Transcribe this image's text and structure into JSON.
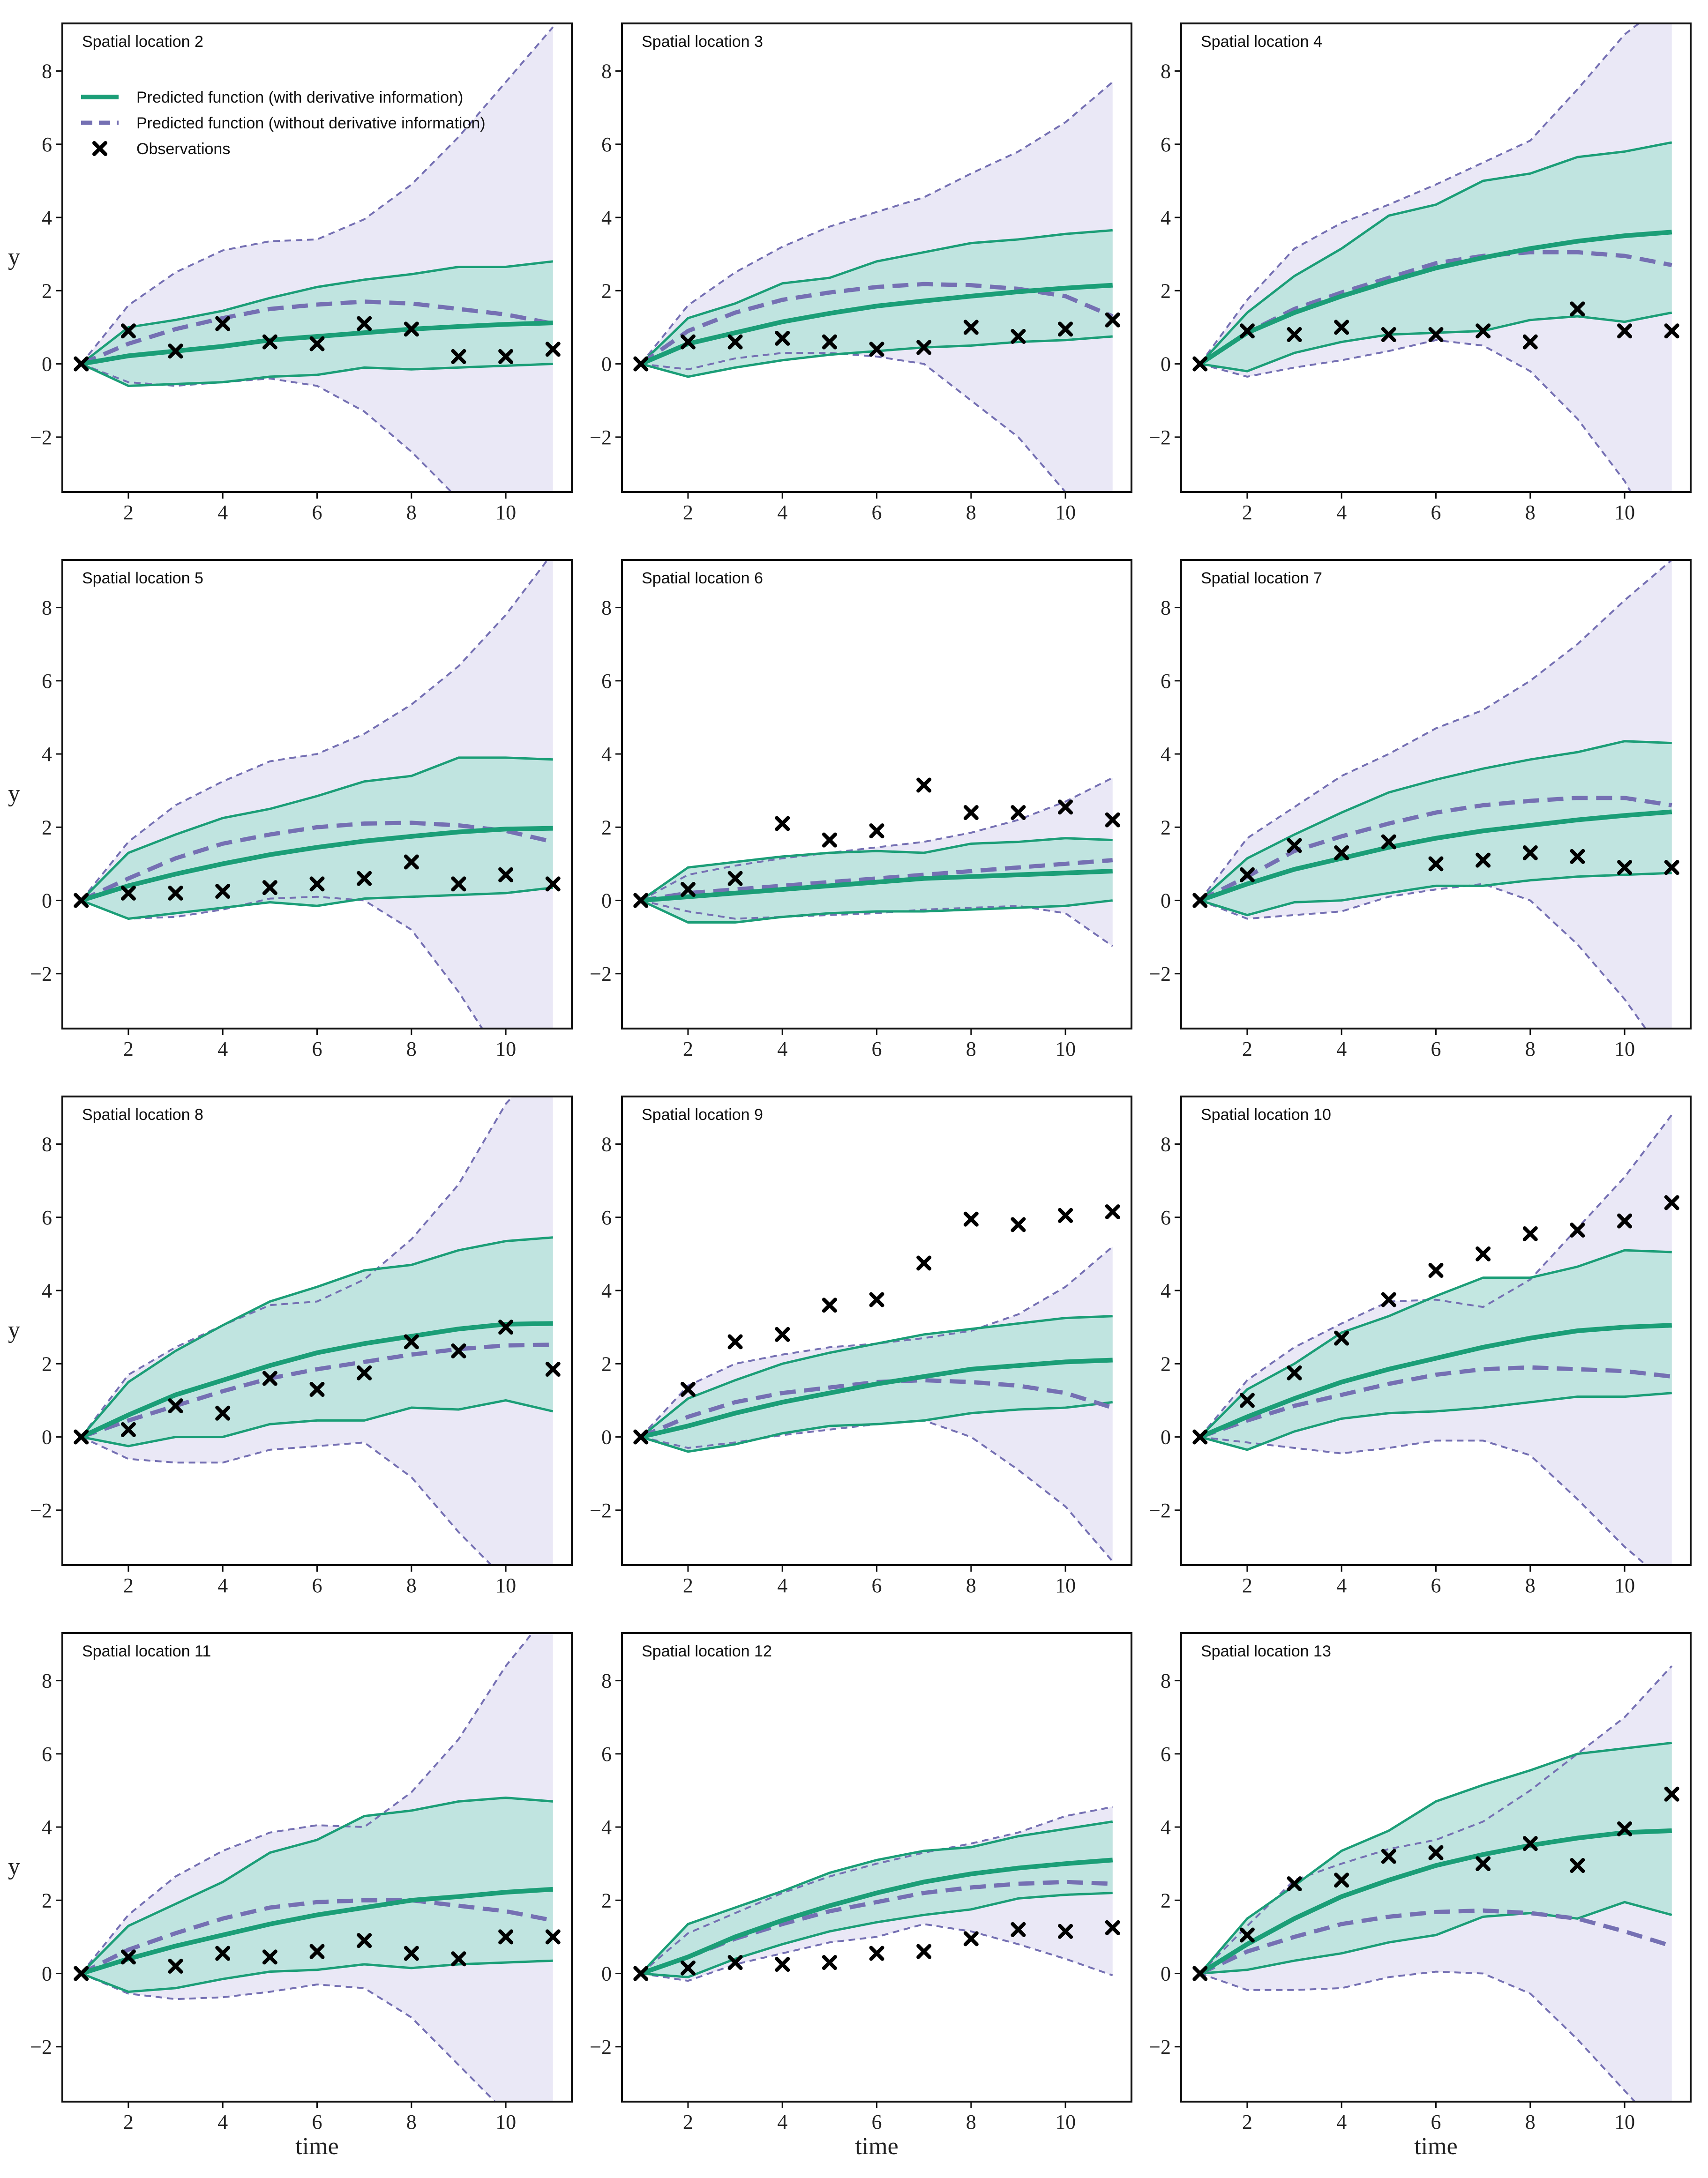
{
  "chart_data": {
    "type": "line",
    "xlim": [
      0.6,
      11.4
    ],
    "ylim": [
      -3.5,
      9.3
    ],
    "x_ticks": [
      2,
      4,
      6,
      8,
      10
    ],
    "y_ticks": [
      -2,
      0,
      2,
      4,
      6,
      8
    ],
    "x_values": [
      1,
      2,
      3,
      4,
      5,
      6,
      7,
      8,
      9,
      10,
      11
    ],
    "xlabel": "time",
    "ylabel": "y",
    "grid": false,
    "legend": {
      "placement": "top-left of first panel",
      "entries": [
        {
          "label": "Predicted function (with derivative information)",
          "style": "solid",
          "color": "#1b9e77"
        },
        {
          "label": "Predicted function (without derivative information)",
          "style": "dashed",
          "color": "#7570b3"
        },
        {
          "label": "Observations",
          "style": "marker-x",
          "color": "#000000"
        }
      ]
    },
    "colors": {
      "with_derivative": "#1b9e77",
      "without_derivative": "#7570b3",
      "with_band": "#b9e3dc",
      "without_band": "#e6e4f4",
      "observations": "#000000"
    },
    "panels": [
      {
        "title": "Spatial location 2",
        "obs": [
          0,
          0.9,
          0.35,
          1.1,
          0.6,
          0.55,
          1.1,
          0.95,
          0.2,
          0.2,
          0.4
        ],
        "with_mean": [
          0,
          0.22,
          0.35,
          0.48,
          0.65,
          0.75,
          0.85,
          0.95,
          1.02,
          1.08,
          1.12
        ],
        "with_lower": [
          0,
          -0.6,
          -0.55,
          -0.5,
          -0.35,
          -0.3,
          -0.1,
          -0.15,
          -0.1,
          -0.05,
          0
        ],
        "with_upper": [
          0,
          1.0,
          1.2,
          1.45,
          1.8,
          2.1,
          2.3,
          2.45,
          2.65,
          2.65,
          2.8
        ],
        "without_mean": [
          0,
          0.55,
          0.95,
          1.25,
          1.5,
          1.62,
          1.7,
          1.65,
          1.5,
          1.35,
          1.1
        ],
        "without_lower": [
          0,
          -0.5,
          -0.6,
          -0.5,
          -0.4,
          -0.6,
          -1.3,
          -2.4,
          -3.7,
          -5.3,
          -7.2
        ],
        "without_upper": [
          0,
          1.6,
          2.5,
          3.1,
          3.35,
          3.4,
          3.95,
          4.9,
          6.2,
          7.7,
          9.2
        ]
      },
      {
        "title": "Spatial location 3",
        "obs": [
          0,
          0.6,
          0.6,
          0.7,
          0.6,
          0.4,
          0.45,
          1.0,
          0.75,
          0.95,
          1.2
        ],
        "with_mean": [
          0,
          0.55,
          0.85,
          1.15,
          1.38,
          1.58,
          1.72,
          1.85,
          1.97,
          2.07,
          2.15
        ],
        "with_lower": [
          0,
          -0.35,
          -0.1,
          0.1,
          0.25,
          0.35,
          0.45,
          0.5,
          0.6,
          0.65,
          0.75
        ],
        "with_upper": [
          0,
          1.25,
          1.65,
          2.2,
          2.35,
          2.8,
          3.05,
          3.3,
          3.4,
          3.55,
          3.65
        ],
        "without_mean": [
          0,
          0.9,
          1.4,
          1.75,
          1.95,
          2.1,
          2.18,
          2.15,
          2.05,
          1.85,
          1.3
        ],
        "without_lower": [
          0,
          -0.15,
          0.15,
          0.3,
          0.3,
          0.2,
          0.0,
          -1.0,
          -2.0,
          -3.5,
          -5.0
        ],
        "without_upper": [
          0,
          1.6,
          2.5,
          3.2,
          3.75,
          4.15,
          4.55,
          5.2,
          5.8,
          6.6,
          7.7
        ]
      },
      {
        "title": "Spatial location 4",
        "obs": [
          0,
          0.9,
          0.8,
          1.0,
          0.8,
          0.8,
          0.9,
          0.6,
          1.5,
          0.9,
          0.9
        ],
        "with_mean": [
          0,
          0.85,
          1.4,
          1.85,
          2.25,
          2.62,
          2.9,
          3.15,
          3.35,
          3.5,
          3.6
        ],
        "with_lower": [
          0,
          -0.2,
          0.3,
          0.6,
          0.8,
          0.85,
          0.9,
          1.2,
          1.3,
          1.15,
          1.4
        ],
        "with_upper": [
          0,
          1.4,
          2.4,
          3.15,
          4.05,
          4.35,
          5.0,
          5.2,
          5.65,
          5.8,
          6.05
        ],
        "without_mean": [
          0,
          0.85,
          1.5,
          1.95,
          2.35,
          2.75,
          2.95,
          3.05,
          3.05,
          2.95,
          2.7
        ],
        "without_lower": [
          0,
          -0.35,
          -0.1,
          0.1,
          0.35,
          0.65,
          0.5,
          -0.2,
          -1.5,
          -3.2,
          -5.5
        ],
        "without_upper": [
          0,
          1.75,
          3.15,
          3.85,
          4.35,
          4.9,
          5.5,
          6.1,
          7.5,
          9.0,
          10.0
        ]
      },
      {
        "title": "Spatial location 5",
        "obs": [
          0,
          0.2,
          0.2,
          0.25,
          0.35,
          0.45,
          0.6,
          1.05,
          0.45,
          0.7,
          0.45
        ],
        "with_mean": [
          0,
          0.4,
          0.72,
          1.0,
          1.25,
          1.45,
          1.62,
          1.75,
          1.87,
          1.95,
          1.97
        ],
        "with_lower": [
          0,
          -0.5,
          -0.35,
          -0.2,
          -0.05,
          -0.15,
          0.05,
          0.1,
          0.15,
          0.2,
          0.35
        ],
        "with_upper": [
          0,
          1.3,
          1.8,
          2.25,
          2.5,
          2.85,
          3.25,
          3.4,
          3.9,
          3.9,
          3.85
        ],
        "without_mean": [
          0,
          0.6,
          1.15,
          1.55,
          1.8,
          2.0,
          2.1,
          2.12,
          2.05,
          1.9,
          1.6
        ],
        "without_lower": [
          0,
          -0.5,
          -0.45,
          -0.25,
          0.05,
          0.1,
          0.0,
          -0.8,
          -2.5,
          -4.5,
          -6.5
        ],
        "without_upper": [
          0,
          1.6,
          2.6,
          3.25,
          3.8,
          4.0,
          4.55,
          5.35,
          6.4,
          7.8,
          9.5
        ]
      },
      {
        "title": "Spatial location 6",
        "obs": [
          0,
          0.3,
          0.6,
          2.1,
          1.65,
          1.9,
          3.15,
          2.4,
          2.4,
          2.55,
          2.2
        ],
        "with_mean": [
          0,
          0.1,
          0.2,
          0.3,
          0.4,
          0.5,
          0.6,
          0.65,
          0.7,
          0.75,
          0.8
        ],
        "with_lower": [
          0,
          -0.6,
          -0.6,
          -0.45,
          -0.35,
          -0.3,
          -0.3,
          -0.25,
          -0.2,
          -0.15,
          0
        ],
        "with_upper": [
          0,
          0.9,
          1.05,
          1.2,
          1.3,
          1.35,
          1.3,
          1.55,
          1.6,
          1.7,
          1.65
        ],
        "without_mean": [
          0,
          0.2,
          0.3,
          0.4,
          0.5,
          0.6,
          0.7,
          0.8,
          0.9,
          1.0,
          1.1
        ],
        "without_lower": [
          0,
          -0.3,
          -0.5,
          -0.45,
          -0.4,
          -0.35,
          -0.25,
          -0.2,
          -0.15,
          -0.35,
          -1.25
        ],
        "without_upper": [
          0,
          0.7,
          0.95,
          1.15,
          1.3,
          1.45,
          1.6,
          1.85,
          2.2,
          2.7,
          3.35
        ]
      },
      {
        "title": "Spatial location 7",
        "obs": [
          0,
          0.7,
          1.5,
          1.3,
          1.6,
          1.0,
          1.1,
          1.3,
          1.2,
          0.9,
          0.9
        ],
        "with_mean": [
          0,
          0.45,
          0.85,
          1.15,
          1.45,
          1.7,
          1.9,
          2.05,
          2.2,
          2.32,
          2.42
        ],
        "with_lower": [
          0,
          -0.4,
          -0.05,
          0.0,
          0.2,
          0.4,
          0.4,
          0.55,
          0.65,
          0.7,
          0.75
        ],
        "with_upper": [
          0,
          1.15,
          1.8,
          2.4,
          2.95,
          3.3,
          3.6,
          3.85,
          4.05,
          4.35,
          4.3
        ],
        "without_mean": [
          0,
          0.65,
          1.35,
          1.75,
          2.1,
          2.4,
          2.6,
          2.72,
          2.8,
          2.8,
          2.6
        ],
        "without_lower": [
          0,
          -0.5,
          -0.4,
          -0.3,
          0.1,
          0.3,
          0.45,
          0.0,
          -1.2,
          -2.7,
          -4.5
        ],
        "without_upper": [
          0,
          1.7,
          2.55,
          3.4,
          4.0,
          4.7,
          5.2,
          6.0,
          7.0,
          8.2,
          9.3
        ]
      },
      {
        "title": "Spatial location 8",
        "obs": [
          0,
          0.2,
          0.85,
          0.65,
          1.6,
          1.3,
          1.75,
          2.6,
          2.35,
          3.0,
          1.85
        ],
        "with_mean": [
          0,
          0.6,
          1.15,
          1.55,
          1.95,
          2.3,
          2.55,
          2.75,
          2.95,
          3.08,
          3.1
        ],
        "with_lower": [
          0,
          -0.25,
          0.0,
          0.0,
          0.35,
          0.45,
          0.45,
          0.8,
          0.75,
          1.0,
          0.7
        ],
        "with_upper": [
          0,
          1.5,
          2.35,
          3.05,
          3.7,
          4.1,
          4.55,
          4.7,
          5.1,
          5.35,
          5.45
        ],
        "without_mean": [
          0,
          0.45,
          0.85,
          1.25,
          1.6,
          1.85,
          2.05,
          2.25,
          2.4,
          2.5,
          2.52
        ],
        "without_lower": [
          0,
          -0.6,
          -0.7,
          -0.7,
          -0.35,
          -0.25,
          -0.15,
          -1.1,
          -2.6,
          -3.9,
          -5.5
        ],
        "without_upper": [
          0,
          1.7,
          2.45,
          3.05,
          3.6,
          3.7,
          4.3,
          5.4,
          6.9,
          9.1,
          10.5
        ]
      },
      {
        "title": "Spatial location 9",
        "obs": [
          0,
          1.3,
          2.6,
          2.8,
          3.6,
          3.75,
          4.75,
          5.95,
          5.8,
          6.05,
          6.15
        ],
        "with_mean": [
          0,
          0.3,
          0.65,
          0.95,
          1.2,
          1.45,
          1.65,
          1.85,
          1.95,
          2.05,
          2.1
        ],
        "with_lower": [
          0,
          -0.4,
          -0.2,
          0.1,
          0.3,
          0.35,
          0.45,
          0.65,
          0.75,
          0.8,
          0.95
        ],
        "with_upper": [
          0,
          1.05,
          1.55,
          2.0,
          2.3,
          2.55,
          2.8,
          2.95,
          3.1,
          3.25,
          3.3
        ],
        "without_mean": [
          0,
          0.55,
          0.95,
          1.2,
          1.35,
          1.5,
          1.55,
          1.5,
          1.4,
          1.2,
          0.8
        ],
        "without_lower": [
          0,
          -0.3,
          -0.15,
          0.05,
          0.2,
          0.35,
          0.45,
          0.0,
          -0.9,
          -1.9,
          -3.4
        ],
        "without_upper": [
          0,
          1.4,
          2.0,
          2.25,
          2.45,
          2.55,
          2.7,
          2.9,
          3.35,
          4.1,
          5.2
        ]
      },
      {
        "title": "Spatial location 10",
        "obs": [
          0,
          1.0,
          1.75,
          2.7,
          3.75,
          4.55,
          5.0,
          5.55,
          5.65,
          5.9,
          6.4
        ],
        "with_mean": [
          0,
          0.55,
          1.05,
          1.5,
          1.85,
          2.15,
          2.45,
          2.7,
          2.9,
          3.0,
          3.05
        ],
        "with_lower": [
          0,
          -0.35,
          0.15,
          0.5,
          0.65,
          0.7,
          0.8,
          0.95,
          1.1,
          1.1,
          1.2
        ],
        "with_upper": [
          0,
          1.3,
          2.0,
          2.85,
          3.3,
          3.85,
          4.35,
          4.35,
          4.65,
          5.1,
          5.05
        ],
        "without_mean": [
          0,
          0.45,
          0.85,
          1.15,
          1.45,
          1.7,
          1.85,
          1.9,
          1.85,
          1.8,
          1.65
        ],
        "without_lower": [
          0,
          -0.15,
          -0.3,
          -0.45,
          -0.3,
          -0.1,
          -0.1,
          -0.5,
          -1.7,
          -3.0,
          -4.1
        ],
        "without_upper": [
          0,
          1.55,
          2.45,
          3.1,
          3.7,
          3.75,
          3.55,
          4.3,
          5.7,
          7.1,
          8.8
        ]
      },
      {
        "title": "Spatial location 11",
        "obs": [
          0,
          0.45,
          0.2,
          0.55,
          0.45,
          0.6,
          0.9,
          0.55,
          0.4,
          1.0,
          1.0
        ],
        "with_mean": [
          0,
          0.4,
          0.75,
          1.05,
          1.35,
          1.6,
          1.8,
          2.0,
          2.1,
          2.22,
          2.3
        ],
        "with_lower": [
          0,
          -0.5,
          -0.4,
          -0.15,
          0.05,
          0.1,
          0.25,
          0.15,
          0.25,
          0.3,
          0.35
        ],
        "with_upper": [
          0,
          1.3,
          1.9,
          2.5,
          3.3,
          3.65,
          4.3,
          4.45,
          4.7,
          4.8,
          4.7
        ],
        "without_mean": [
          0,
          0.65,
          1.1,
          1.5,
          1.8,
          1.95,
          2.0,
          2.0,
          1.85,
          1.7,
          1.45
        ],
        "without_lower": [
          0,
          -0.55,
          -0.7,
          -0.65,
          -0.5,
          -0.3,
          -0.4,
          -1.2,
          -2.5,
          -3.8,
          -5.2
        ],
        "without_upper": [
          0,
          1.6,
          2.65,
          3.35,
          3.85,
          4.05,
          4.0,
          4.95,
          6.4,
          8.4,
          10.0
        ]
      },
      {
        "title": "Spatial location 12",
        "obs": [
          0,
          0.15,
          0.3,
          0.25,
          0.3,
          0.55,
          0.6,
          0.95,
          1.2,
          1.15,
          1.25
        ],
        "with_mean": [
          0,
          0.45,
          1.0,
          1.45,
          1.85,
          2.2,
          2.5,
          2.72,
          2.88,
          3.0,
          3.1
        ],
        "with_lower": [
          0,
          -0.1,
          0.4,
          0.8,
          1.15,
          1.4,
          1.6,
          1.75,
          2.05,
          2.15,
          2.2
        ],
        "with_upper": [
          0,
          1.35,
          1.8,
          2.25,
          2.75,
          3.1,
          3.35,
          3.45,
          3.75,
          3.95,
          4.15
        ],
        "without_mean": [
          0,
          0.45,
          0.95,
          1.35,
          1.7,
          1.95,
          2.2,
          2.35,
          2.45,
          2.5,
          2.45
        ],
        "without_lower": [
          0,
          -0.2,
          0.25,
          0.55,
          0.85,
          1.0,
          1.35,
          1.15,
          0.8,
          0.4,
          -0.05
        ],
        "without_upper": [
          0,
          1.1,
          1.65,
          2.2,
          2.65,
          3.0,
          3.3,
          3.55,
          3.85,
          4.3,
          4.55
        ]
      },
      {
        "title": "Spatial location 13",
        "obs": [
          0,
          1.05,
          2.45,
          2.55,
          3.2,
          3.3,
          3.0,
          3.55,
          2.95,
          3.95,
          4.9
        ],
        "with_mean": [
          0,
          0.8,
          1.5,
          2.1,
          2.55,
          2.95,
          3.25,
          3.5,
          3.7,
          3.85,
          3.9
        ],
        "with_lower": [
          0,
          0.1,
          0.35,
          0.55,
          0.85,
          1.05,
          1.55,
          1.65,
          1.5,
          1.95,
          1.6
        ],
        "with_upper": [
          0,
          1.5,
          2.4,
          3.35,
          3.9,
          4.7,
          5.15,
          5.55,
          6.0,
          6.15,
          6.3
        ],
        "without_mean": [
          0,
          0.6,
          1.0,
          1.35,
          1.55,
          1.68,
          1.72,
          1.65,
          1.5,
          1.15,
          0.75
        ],
        "without_lower": [
          0,
          -0.45,
          -0.45,
          -0.4,
          -0.1,
          0.05,
          0.0,
          -0.55,
          -1.8,
          -3.2,
          -4.6
        ],
        "without_upper": [
          0,
          1.3,
          2.55,
          3.0,
          3.4,
          3.65,
          4.15,
          5.0,
          6.0,
          7.0,
          8.4
        ]
      }
    ]
  }
}
